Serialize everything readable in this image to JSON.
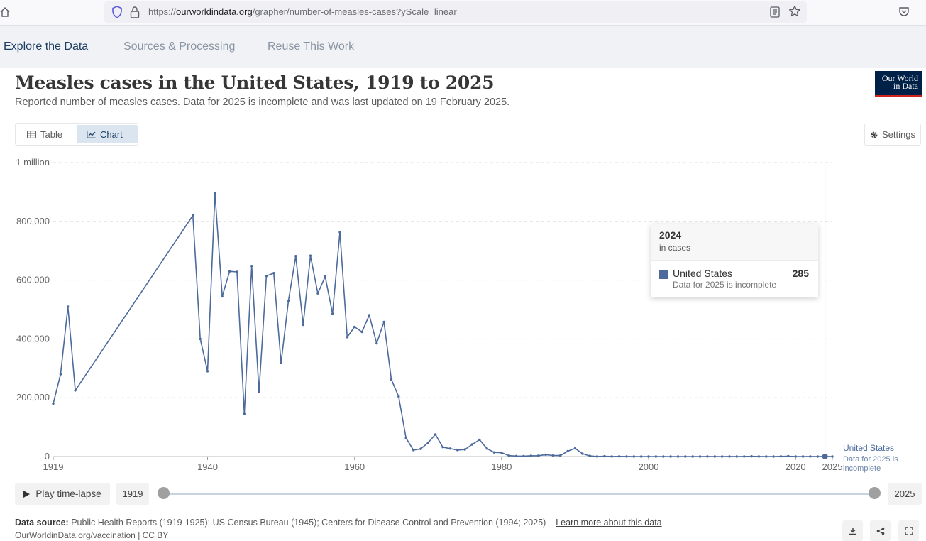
{
  "browser": {
    "url_prefix": "https://",
    "url_host": "ourworldindata.org",
    "url_path": "/grapher/number-of-measles-cases?yScale=linear"
  },
  "tabs": [
    {
      "label": "Explore the Data",
      "active": true
    },
    {
      "label": "Sources & Processing",
      "active": false
    },
    {
      "label": "Reuse This Work",
      "active": false
    }
  ],
  "header": {
    "title": "Measles cases in the United States, 1919 to 2025",
    "subtitle": "Reported number of measles cases. Data for 2025 is incomplete and was last updated on 19 February 2025.",
    "logo_line1": "Our World",
    "logo_line2": "in Data"
  },
  "controls": {
    "table_label": "Table",
    "chart_label": "Chart",
    "settings_label": "Settings"
  },
  "colors": {
    "series": "#4c6a9c",
    "grid": "#dddddd"
  },
  "chart_data": {
    "type": "line",
    "title": "Measles cases in the United States, 1919 to 2025",
    "subtitle": "Reported number of measles cases. Data for 2025 is incomplete and was last updated on 19 February 2025.",
    "xlim": [
      1919,
      2025
    ],
    "ylim": [
      0,
      1000000
    ],
    "y_ticks": [
      0,
      200000,
      400000,
      600000,
      800000,
      1000000
    ],
    "y_tick_labels": [
      "0",
      "200,000",
      "400,000",
      "600,000",
      "800,000",
      "1 million"
    ],
    "x_ticks": [
      1919,
      1940,
      1960,
      1980,
      2000,
      2020,
      2025
    ],
    "x_tick_labels": [
      "1919",
      "1940",
      "1960",
      "1980",
      "2000",
      "2020",
      "2025"
    ],
    "grid": "horizontal-dashed",
    "series": [
      {
        "name": "United States",
        "end_label_note": "Data for 2025 is incomplete",
        "x": [
          1919,
          1920,
          1921,
          1922,
          1938,
          1939,
          1940,
          1941,
          1942,
          1943,
          1944,
          1945,
          1946,
          1947,
          1948,
          1949,
          1950,
          1951,
          1952,
          1953,
          1954,
          1955,
          1956,
          1957,
          1958,
          1959,
          1960,
          1961,
          1962,
          1963,
          1964,
          1965,
          1966,
          1967,
          1968,
          1969,
          1970,
          1971,
          1972,
          1973,
          1974,
          1975,
          1976,
          1977,
          1978,
          1979,
          1980,
          1981,
          1982,
          1983,
          1984,
          1985,
          1986,
          1987,
          1988,
          1989,
          1990,
          1991,
          1992,
          1993,
          1994,
          1995,
          1996,
          1997,
          1998,
          1999,
          2000,
          2001,
          2002,
          2003,
          2004,
          2005,
          2006,
          2007,
          2008,
          2009,
          2010,
          2011,
          2012,
          2013,
          2014,
          2015,
          2016,
          2017,
          2018,
          2019,
          2020,
          2021,
          2022,
          2023,
          2024,
          2025
        ],
        "y": [
          180000,
          280000,
          510000,
          225000,
          820000,
          400000,
          290000,
          895000,
          545000,
          630000,
          628000,
          145000,
          648000,
          220000,
          614000,
          624000,
          318000,
          530000,
          682000,
          448000,
          683000,
          555000,
          612000,
          486000,
          763000,
          406000,
          441000,
          424000,
          481000,
          385000,
          458000,
          262000,
          204000,
          63000,
          22000,
          26000,
          47000,
          75000,
          32000,
          27000,
          22000,
          24000,
          41000,
          57000,
          27000,
          14000,
          13000,
          3100,
          1700,
          1500,
          2600,
          2800,
          6300,
          3700,
          3400,
          18000,
          27800,
          9600,
          2200,
          310,
          960,
          310,
          510,
          140,
          100,
          100,
          86,
          116,
          44,
          56,
          37,
          66,
          55,
          43,
          140,
          71,
          63,
          220,
          55,
          187,
          667,
          188,
          86,
          120,
          375,
          1282,
          13,
          49,
          121,
          59,
          285,
          90
        ]
      }
    ],
    "tooltip": {
      "year": "2024",
      "unit": "in cases",
      "series": "United States",
      "value": "285",
      "note": "Data for 2025 is incomplete"
    }
  },
  "timeline": {
    "play_label": "Play time-lapse",
    "start_year": "1919",
    "end_year": "2025"
  },
  "footer": {
    "source_label": "Data source:",
    "source_text": " Public Health Reports (1919-1925); US Census Bureau (1945); Centers for Disease Control and Prevention (1994; 2025) – ",
    "learn_more": "Learn more about this data",
    "license": "OurWorldinData.org/vaccination | CC BY"
  }
}
